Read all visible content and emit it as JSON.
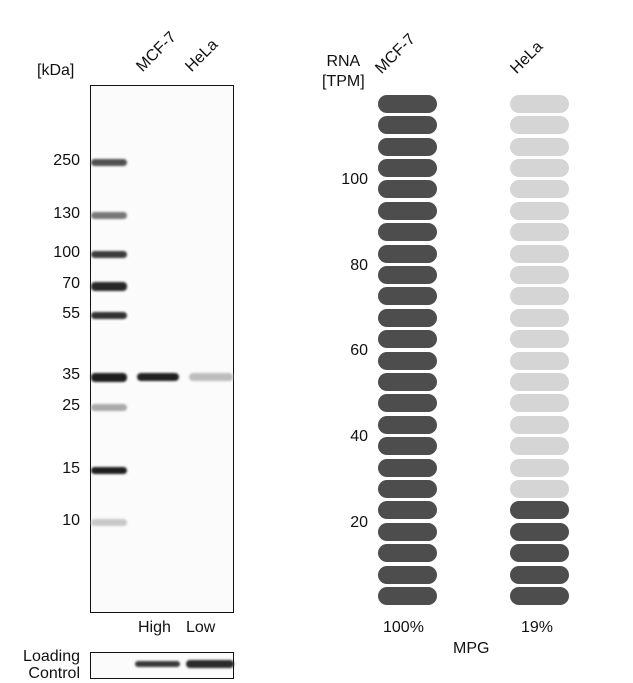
{
  "western_blot": {
    "unit_label": "[kDa]",
    "lanes": [
      "MCF-7",
      "HeLa"
    ],
    "markers": [
      "250",
      "130",
      "100",
      "70",
      "55",
      "35",
      "25",
      "15",
      "10"
    ],
    "expression_labels": [
      "High",
      "Low"
    ],
    "loading_control_label": [
      "Loading",
      "Control"
    ]
  },
  "rna": {
    "axis_label": [
      "RNA",
      "[TPM]"
    ],
    "y_ticks": [
      "100",
      "80",
      "60",
      "40",
      "20"
    ],
    "cell_lines": [
      {
        "name": "MCF-7",
        "percent": "100%",
        "fraction": 1.0
      },
      {
        "name": "HeLa",
        "percent": "19%",
        "fraction": 0.19
      }
    ],
    "footer": "MPG",
    "colors": {
      "filled": "#4d4d4d",
      "empty": "#d5d5d5"
    }
  }
}
